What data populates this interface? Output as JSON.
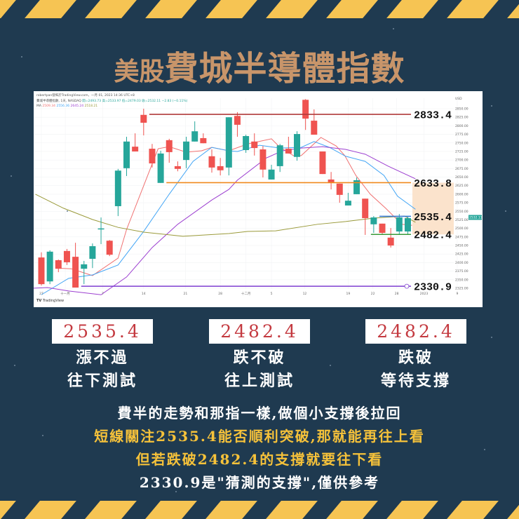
{
  "colors": {
    "background": "#1f3a50",
    "stripe": "#f6c453",
    "title": "#c8956a",
    "up": "#26a69a",
    "down": "#ef5350",
    "highlight": "#f6c23a",
    "box_text": "#c43a40"
  },
  "title": {
    "prefix": "美股",
    "main": "費城半導體指數"
  },
  "chart_header": {
    "publisher": "robertpan發佈於TradingView.com，一月 01, 2023 14:36 UTC+8",
    "symbol": "費城半導體指數, 1天, NASDAQ",
    "open": "開=2493.73",
    "high": "高=2533.97",
    "low": "低=2479.03",
    "close": "收=2532.11",
    "change": "−2.83 (−0.11%)",
    "ma_label": "MA",
    "ma_values": [
      "2509.34",
      "2556.36",
      "2645.24",
      "2518.21"
    ]
  },
  "chart_data": {
    "type": "candlestick",
    "currency": "USD",
    "ylim": [
      2325,
      2850
    ],
    "y_ticks": [
      2850,
      2825,
      2800,
      2775,
      2750,
      2725,
      2700,
      2675,
      2650,
      2625,
      2600,
      2575,
      2550,
      2525,
      2500,
      2475,
      2450,
      2425,
      2400,
      2375,
      2350,
      2325
    ],
    "x_ticks": [
      {
        "label": "27",
        "bar": 0
      },
      {
        "label": "十一月",
        "bar": 2.8
      },
      {
        "label": "7",
        "bar": 7.2
      },
      {
        "label": "14",
        "bar": 12
      },
      {
        "label": "21",
        "bar": 16.9
      },
      {
        "label": "28",
        "bar": 21
      },
      {
        "label": "十二月",
        "bar": 24
      },
      {
        "label": "5",
        "bar": 27
      },
      {
        "label": "12",
        "bar": 30.9
      },
      {
        "label": "19",
        "bar": 36
      },
      {
        "label": "22",
        "bar": 38.9
      },
      {
        "label": "28",
        "bar": 41.7
      },
      {
        "label": "2023",
        "bar": 44.9
      },
      {
        "label": "9",
        "bar": 48.8
      }
    ],
    "candles_ohlc": [
      [
        2415,
        2430,
        2333,
        2337
      ],
      [
        2345,
        2436,
        2337,
        2432
      ],
      [
        2407,
        2409,
        2372,
        2382
      ],
      [
        2434,
        2440,
        2393,
        2401
      ],
      [
        2417,
        2458,
        2327,
        2327
      ],
      [
        2382,
        2405,
        2337,
        2395
      ],
      [
        2411,
        2456,
        2384,
        2448
      ],
      [
        2497,
        2532,
        2454,
        2500
      ],
      [
        2464,
        2466,
        2419,
        2423
      ],
      [
        2565,
        2674,
        2536,
        2669
      ],
      [
        2676,
        2768,
        2653,
        2754
      ],
      [
        2739,
        2778,
        2725,
        2725
      ],
      [
        2832,
        2850,
        2772,
        2809
      ],
      [
        2733,
        2747,
        2678,
        2690
      ],
      [
        2633,
        2727,
        2633,
        2719
      ],
      [
        2758,
        2762,
        2692,
        2723
      ],
      [
        2682,
        2696,
        2667,
        2674
      ],
      [
        2700,
        2768,
        2676,
        2754
      ],
      [
        2754,
        2813,
        2754,
        2784
      ],
      [
        2764,
        2778,
        2749,
        2749
      ],
      [
        2711,
        2731,
        2663,
        2678
      ],
      [
        2682,
        2706,
        2655,
        2670
      ],
      [
        2678,
        2825,
        2655,
        2825
      ],
      [
        2829,
        2840,
        2768,
        2803
      ],
      [
        2729,
        2774,
        2721,
        2770
      ],
      [
        2754,
        2778,
        2713,
        2735
      ],
      [
        2731,
        2741,
        2649,
        2672
      ],
      [
        2643,
        2686,
        2643,
        2672
      ],
      [
        2682,
        2747,
        2665,
        2743
      ],
      [
        2733,
        2768,
        2719,
        2719
      ],
      [
        2709,
        2784,
        2698,
        2776
      ],
      [
        2876,
        2878,
        2788,
        2821
      ],
      [
        2815,
        2848,
        2774,
        2774
      ],
      [
        2725,
        2725,
        2659,
        2659
      ],
      [
        2643,
        2665,
        2614,
        2633
      ],
      [
        2631,
        2631,
        2575,
        2598
      ],
      [
        2567,
        2604,
        2567,
        2581
      ],
      [
        2600,
        2649,
        2600,
        2641
      ],
      [
        2587,
        2587,
        2481,
        2530
      ],
      [
        2512,
        2536,
        2487,
        2532
      ],
      [
        2514,
        2514,
        2481,
        2487
      ],
      [
        2473,
        2501,
        2444,
        2450
      ],
      [
        2491,
        2542,
        2481,
        2532
      ],
      [
        2491,
        2536,
        2481,
        2530
      ]
    ],
    "moving_averages": [
      {
        "color": "#f07070",
        "points": [
          [
            1.8,
            2384
          ],
          [
            3.5,
            2382
          ],
          [
            6,
            2362
          ],
          [
            9,
            2413
          ],
          [
            10,
            2497
          ],
          [
            13.7,
            2733
          ],
          [
            15,
            2739
          ],
          [
            17,
            2723
          ],
          [
            18.8,
            2727
          ],
          [
            20,
            2737
          ],
          [
            22,
            2727
          ],
          [
            24.2,
            2747
          ],
          [
            27,
            2762
          ],
          [
            28,
            2737
          ],
          [
            29.7,
            2711
          ],
          [
            30.5,
            2713
          ],
          [
            32.8,
            2766
          ],
          [
            34.6,
            2741
          ],
          [
            35.6,
            2713
          ],
          [
            36.9,
            2655
          ],
          [
            38.6,
            2600
          ],
          [
            40.4,
            2559
          ],
          [
            42.3,
            2512
          ],
          [
            43.5,
            2509
          ]
        ]
      },
      {
        "color": "#42a5f5",
        "points": [
          [
            0,
            2306
          ],
          [
            3.2,
            2354
          ],
          [
            6,
            2364
          ],
          [
            9,
            2393
          ],
          [
            12,
            2491
          ],
          [
            15,
            2600
          ],
          [
            17.8,
            2696
          ],
          [
            20,
            2737
          ],
          [
            22,
            2727
          ],
          [
            23,
            2725
          ],
          [
            25.6,
            2743
          ],
          [
            28,
            2735
          ],
          [
            30.5,
            2737
          ],
          [
            32,
            2754
          ],
          [
            33.8,
            2737
          ],
          [
            35.7,
            2711
          ],
          [
            38,
            2696
          ],
          [
            40.2,
            2655
          ],
          [
            41.8,
            2594
          ],
          [
            43.9,
            2556
          ]
        ]
      },
      {
        "color": "#9c3fd0",
        "points": [
          [
            -1,
            2325
          ],
          [
            0.7,
            2327
          ],
          [
            3.2,
            2317
          ],
          [
            7,
            2306
          ],
          [
            10,
            2358
          ],
          [
            13,
            2444
          ],
          [
            16,
            2512
          ],
          [
            20,
            2583
          ],
          [
            22,
            2614
          ],
          [
            23,
            2641
          ],
          [
            26.4,
            2706
          ],
          [
            28.3,
            2727
          ],
          [
            30.5,
            2735
          ],
          [
            33,
            2739
          ],
          [
            35.7,
            2731
          ],
          [
            38,
            2717
          ],
          [
            40.7,
            2682
          ],
          [
            43.9,
            2645
          ]
        ]
      },
      {
        "color": "#9a9a3a",
        "points": [
          [
            -0.7,
            2600
          ],
          [
            2.6,
            2559
          ],
          [
            6,
            2526
          ],
          [
            9,
            2503
          ],
          [
            12,
            2489
          ],
          [
            16.6,
            2477
          ],
          [
            22,
            2485
          ],
          [
            24.2,
            2491
          ],
          [
            27.5,
            2493
          ],
          [
            32.4,
            2512
          ],
          [
            35.7,
            2520
          ],
          [
            39,
            2530
          ],
          [
            42.6,
            2536
          ],
          [
            43.9,
            2518
          ]
        ]
      }
    ],
    "levels": [
      {
        "value": "2833.4",
        "price": 2833.4,
        "color": "#b03a3a",
        "from_bar": 13
      },
      {
        "value": "2633.8",
        "price": 2633.8,
        "color": "#f08a1c",
        "from_bar": 15
      },
      {
        "value": "2535.4",
        "price": 2535.4,
        "color": "#3a7bd5",
        "from_bar": 40
      },
      {
        "value": "2482.4",
        "price": 2482.4,
        "color": "#3a9a3a",
        "from_bar": 39
      },
      {
        "value": "2330.9",
        "price": 2330.9,
        "color": "#7e3fd0",
        "from_bar": 5
      }
    ],
    "shaded_zone": [
      2482.4,
      2633.8
    ],
    "last_price": "2532.11"
  },
  "tradingview": "TradingView",
  "boxes": [
    {
      "value": "2535.4",
      "line1": "漲不過",
      "line2": "往下測試"
    },
    {
      "value": "2482.4",
      "line1": "跌不破",
      "line2": "往上測試"
    },
    {
      "value": "2482.4",
      "line1": "跌破",
      "line2": "等待支撐"
    }
  ],
  "paragraph": [
    "費半的走勢和那指一樣,做個小支撐後拉回",
    "短線關注2535.4能否順利突破,那就能再往上看",
    "但若跌破2482.4的支撐就要往下看",
    "2330.9是\"猜測的支撐\",僅供參考"
  ]
}
